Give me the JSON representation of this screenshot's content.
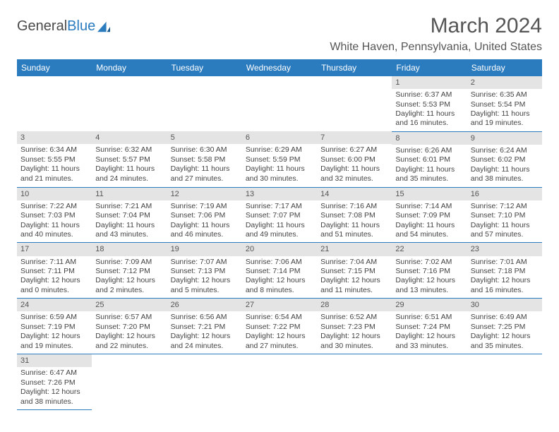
{
  "brand": {
    "part1": "General",
    "part2": "Blue"
  },
  "title": "March 2024",
  "subtitle": "White Haven, Pennsylvania, United States",
  "colors": {
    "header_bg": "#2b7bbf",
    "header_fg": "#ffffff",
    "daynum_bg": "#e4e4e4",
    "text": "#444444",
    "border": "#2b7bbf",
    "background": "#ffffff"
  },
  "day_labels": [
    "Sunday",
    "Monday",
    "Tuesday",
    "Wednesday",
    "Thursday",
    "Friday",
    "Saturday"
  ],
  "grid": [
    [
      null,
      null,
      null,
      null,
      null,
      {
        "n": "1",
        "sunrise": "6:37 AM",
        "sunset": "5:53 PM",
        "daylight": "11 hours and 16 minutes."
      },
      {
        "n": "2",
        "sunrise": "6:35 AM",
        "sunset": "5:54 PM",
        "daylight": "11 hours and 19 minutes."
      }
    ],
    [
      {
        "n": "3",
        "sunrise": "6:34 AM",
        "sunset": "5:55 PM",
        "daylight": "11 hours and 21 minutes."
      },
      {
        "n": "4",
        "sunrise": "6:32 AM",
        "sunset": "5:57 PM",
        "daylight": "11 hours and 24 minutes."
      },
      {
        "n": "5",
        "sunrise": "6:30 AM",
        "sunset": "5:58 PM",
        "daylight": "11 hours and 27 minutes."
      },
      {
        "n": "6",
        "sunrise": "6:29 AM",
        "sunset": "5:59 PM",
        "daylight": "11 hours and 30 minutes."
      },
      {
        "n": "7",
        "sunrise": "6:27 AM",
        "sunset": "6:00 PM",
        "daylight": "11 hours and 32 minutes."
      },
      {
        "n": "8",
        "sunrise": "6:26 AM",
        "sunset": "6:01 PM",
        "daylight": "11 hours and 35 minutes."
      },
      {
        "n": "9",
        "sunrise": "6:24 AM",
        "sunset": "6:02 PM",
        "daylight": "11 hours and 38 minutes."
      }
    ],
    [
      {
        "n": "10",
        "sunrise": "7:22 AM",
        "sunset": "7:03 PM",
        "daylight": "11 hours and 40 minutes."
      },
      {
        "n": "11",
        "sunrise": "7:21 AM",
        "sunset": "7:04 PM",
        "daylight": "11 hours and 43 minutes."
      },
      {
        "n": "12",
        "sunrise": "7:19 AM",
        "sunset": "7:06 PM",
        "daylight": "11 hours and 46 minutes."
      },
      {
        "n": "13",
        "sunrise": "7:17 AM",
        "sunset": "7:07 PM",
        "daylight": "11 hours and 49 minutes."
      },
      {
        "n": "14",
        "sunrise": "7:16 AM",
        "sunset": "7:08 PM",
        "daylight": "11 hours and 51 minutes."
      },
      {
        "n": "15",
        "sunrise": "7:14 AM",
        "sunset": "7:09 PM",
        "daylight": "11 hours and 54 minutes."
      },
      {
        "n": "16",
        "sunrise": "7:12 AM",
        "sunset": "7:10 PM",
        "daylight": "11 hours and 57 minutes."
      }
    ],
    [
      {
        "n": "17",
        "sunrise": "7:11 AM",
        "sunset": "7:11 PM",
        "daylight": "12 hours and 0 minutes."
      },
      {
        "n": "18",
        "sunrise": "7:09 AM",
        "sunset": "7:12 PM",
        "daylight": "12 hours and 2 minutes."
      },
      {
        "n": "19",
        "sunrise": "7:07 AM",
        "sunset": "7:13 PM",
        "daylight": "12 hours and 5 minutes."
      },
      {
        "n": "20",
        "sunrise": "7:06 AM",
        "sunset": "7:14 PM",
        "daylight": "12 hours and 8 minutes."
      },
      {
        "n": "21",
        "sunrise": "7:04 AM",
        "sunset": "7:15 PM",
        "daylight": "12 hours and 11 minutes."
      },
      {
        "n": "22",
        "sunrise": "7:02 AM",
        "sunset": "7:16 PM",
        "daylight": "12 hours and 13 minutes."
      },
      {
        "n": "23",
        "sunrise": "7:01 AM",
        "sunset": "7:18 PM",
        "daylight": "12 hours and 16 minutes."
      }
    ],
    [
      {
        "n": "24",
        "sunrise": "6:59 AM",
        "sunset": "7:19 PM",
        "daylight": "12 hours and 19 minutes."
      },
      {
        "n": "25",
        "sunrise": "6:57 AM",
        "sunset": "7:20 PM",
        "daylight": "12 hours and 22 minutes."
      },
      {
        "n": "26",
        "sunrise": "6:56 AM",
        "sunset": "7:21 PM",
        "daylight": "12 hours and 24 minutes."
      },
      {
        "n": "27",
        "sunrise": "6:54 AM",
        "sunset": "7:22 PM",
        "daylight": "12 hours and 27 minutes."
      },
      {
        "n": "28",
        "sunrise": "6:52 AM",
        "sunset": "7:23 PM",
        "daylight": "12 hours and 30 minutes."
      },
      {
        "n": "29",
        "sunrise": "6:51 AM",
        "sunset": "7:24 PM",
        "daylight": "12 hours and 33 minutes."
      },
      {
        "n": "30",
        "sunrise": "6:49 AM",
        "sunset": "7:25 PM",
        "daylight": "12 hours and 35 minutes."
      }
    ],
    [
      {
        "n": "31",
        "sunrise": "6:47 AM",
        "sunset": "7:26 PM",
        "daylight": "12 hours and 38 minutes."
      },
      null,
      null,
      null,
      null,
      null,
      null
    ]
  ],
  "labels": {
    "sunrise": "Sunrise: ",
    "sunset": "Sunset: ",
    "daylight": "Daylight: "
  }
}
